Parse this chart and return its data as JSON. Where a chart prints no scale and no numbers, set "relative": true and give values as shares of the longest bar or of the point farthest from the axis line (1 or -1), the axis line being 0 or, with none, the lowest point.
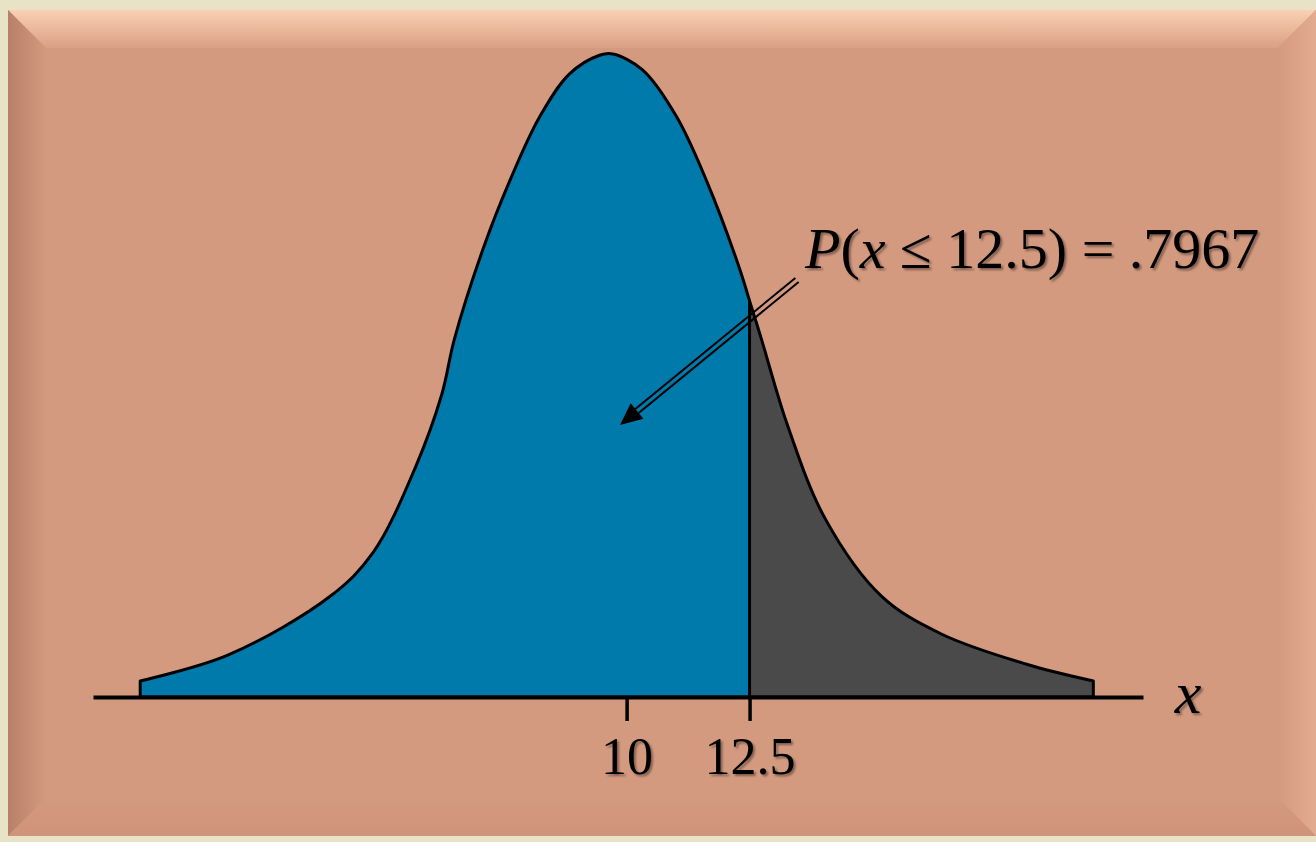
{
  "chart_data": {
    "type": "area",
    "relative": true,
    "xlim": [
      -0.85,
      20.5
    ],
    "xticks": [
      10,
      12.5
    ],
    "xlabel": "x",
    "annotations": [
      "P(x ≤ 12.5) = .7967"
    ],
    "series": [
      {
        "color": "#0079ab",
        "x": [
          0.11,
          1.89,
          3.98,
          4.84,
          5.71,
          6.24,
          6.5,
          7.11,
          7.62,
          8.23,
          8.84,
          9.45,
          9.72,
          10.33,
          11.02,
          11.63,
          12.28,
          12.5
        ],
        "values": [
          0.025,
          0.065,
          0.157,
          0.224,
          0.358,
          0.47,
          0.557,
          0.703,
          0.802,
          0.902,
          0.969,
          0.998,
          1,
          0.975,
          0.902,
          0.802,
          0.67,
          0.616
        ]
      },
      {
        "color": "#4a4a4a",
        "x": [
          12.5,
          12.74,
          13.27,
          14.04,
          15.18,
          16.4,
          18.13,
          19.49
        ],
        "values": [
          0.616,
          0.557,
          0.423,
          0.277,
          0.157,
          0.098,
          0.051,
          0.025
        ]
      }
    ]
  }
}
